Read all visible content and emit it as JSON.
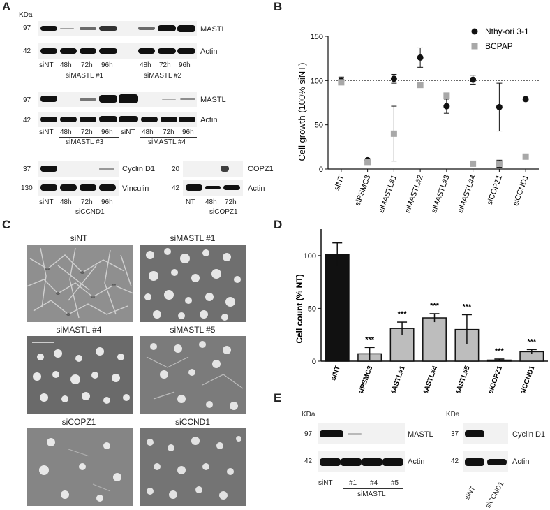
{
  "panels": {
    "A": {
      "label": "A",
      "kda": "KDa",
      "row1": {
        "markers": [
          "97",
          "42"
        ],
        "proteins": [
          "MASTL",
          "Actin"
        ],
        "lanes": [
          "siNT",
          "48h",
          "72h",
          "96h",
          "48h",
          "72h",
          "96h"
        ],
        "groups": [
          "siMASTL #1",
          "siMASTL #2"
        ]
      },
      "row2": {
        "markers": [
          "97",
          "42"
        ],
        "proteins": [
          "MASTL",
          "Actin"
        ],
        "lanes": [
          "siNT",
          "48h",
          "72h",
          "96h",
          "siNT",
          "48h",
          "72h",
          "96h"
        ],
        "groups": [
          "siMASTL #3",
          "siMASTL #4"
        ]
      },
      "row3": {
        "left_markers": [
          "37",
          "130"
        ],
        "left_proteins": [
          "Cyclin D1",
          "Vinculin"
        ],
        "left_lanes": [
          "siNT",
          "48h",
          "72h",
          "96h"
        ],
        "left_group": "siCCND1",
        "right_markers": [
          "20",
          "42"
        ],
        "right_proteins": [
          "COPZ1",
          "Actin"
        ],
        "right_lanes": [
          "NT",
          "48h",
          "72h"
        ],
        "right_group": "siCOPZ1"
      }
    },
    "B": {
      "label": "B",
      "ylabel": "Cell growth (100% siNT)",
      "legend": [
        "Nthy-ori 3-1",
        "BCPAP"
      ]
    },
    "C": {
      "label": "C",
      "captions": [
        "siNT",
        "siMASTL #1",
        "siMASTL #4",
        "siMASTL #5",
        "siCOPZ1",
        "siCCND1"
      ]
    },
    "D": {
      "label": "D",
      "ylabel": "Cell count (% NT)"
    },
    "E": {
      "label": "E",
      "left_kda": "KDa",
      "left_markers": [
        "97",
        "42"
      ],
      "left_proteins": [
        "MASTL",
        "Actin"
      ],
      "left_lanes": [
        "siNT",
        "#1",
        "#4",
        "#5"
      ],
      "left_group": "siMASTL",
      "right_kda": "KDa",
      "right_markers": [
        "37",
        "42"
      ],
      "right_proteins": [
        "Cyclin D1",
        "Actin"
      ],
      "right_lanes": [
        "siNT",
        "siCCND1"
      ]
    }
  },
  "chart_data": [
    {
      "type": "scatter",
      "title": "",
      "xlabel": "",
      "ylabel": "Cell growth (100% siNT)",
      "ylim": [
        0,
        150
      ],
      "yticks": [
        0,
        50,
        100,
        150
      ],
      "categories": [
        "siNT",
        "siPSMC3",
        "siMASTL#1",
        "siMASTL#2",
        "siMASTL#3",
        "siMASTL#4",
        "siCOPZ1",
        "siCCND1"
      ],
      "reference_line": 100,
      "legend_position": "top-right",
      "series": [
        {
          "name": "Nthy-ori 3-1",
          "color": "#111111",
          "marker": "circle",
          "values": [
            100,
            10,
            102,
            126,
            71,
            101,
            70,
            79
          ],
          "errors": [
            4,
            0,
            5,
            11,
            8,
            5,
            27,
            0
          ]
        },
        {
          "name": "BCPAP",
          "color": "#a8a8a8",
          "marker": "square",
          "values": [
            98,
            8,
            40,
            95,
            83,
            6,
            6,
            14
          ],
          "errors": [
            0,
            0,
            31,
            0,
            0,
            0,
            4,
            0
          ]
        }
      ]
    },
    {
      "type": "bar",
      "title": "",
      "xlabel": "",
      "ylabel": "Cell count (% NT)",
      "ylim": [
        0,
        125
      ],
      "yticks": [
        0,
        50,
        100
      ],
      "categories": [
        "siNT",
        "siPSMC3",
        "siMASTL#1",
        "siMASTL#4",
        "siMASTL#5",
        "siCOPZ1",
        "siCCND1"
      ],
      "values": [
        101,
        7,
        31,
        41,
        30,
        1,
        9
      ],
      "errors": [
        11,
        6,
        6,
        4,
        14,
        1,
        2
      ],
      "significance": [
        "",
        "***",
        "***",
        "***",
        "***",
        "***",
        "***"
      ],
      "colors": [
        "#111111",
        "#bdbdbd",
        "#bdbdbd",
        "#bdbdbd",
        "#bdbdbd",
        "#bdbdbd",
        "#bdbdbd"
      ]
    }
  ]
}
